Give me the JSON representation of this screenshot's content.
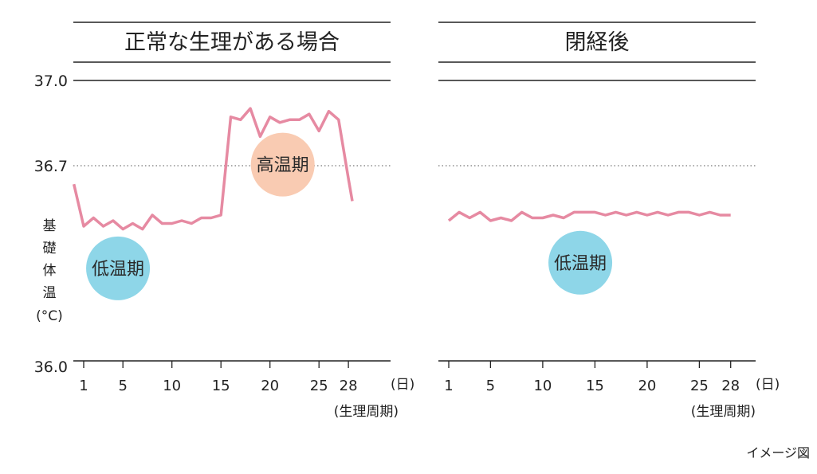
{
  "figure": {
    "y_axis_label_chars": [
      "基",
      "礎",
      "体",
      "温",
      "(°C)"
    ],
    "note": "イメージ図"
  },
  "chart_data": [
    {
      "type": "line",
      "title": "正常な生理がある場合",
      "ylim": [
        36.0,
        37.0
      ],
      "y_ticks": [
        "36.0",
        "36.7",
        "37.0"
      ],
      "reference_line": 36.7,
      "x_ticks": [
        "1",
        "5",
        "10",
        "15",
        "20",
        "25",
        "28"
      ],
      "x_unit": "(日)",
      "x_caption": "(生理周期)",
      "series": [
        {
          "x": [
            0,
            1,
            2,
            3,
            4,
            5,
            6,
            7,
            8,
            9,
            10,
            11,
            12,
            13,
            14,
            15,
            16,
            17,
            18,
            19,
            20,
            21,
            22,
            23,
            24,
            25,
            26,
            27,
            28,
            28.4
          ],
          "y": [
            36.63,
            36.48,
            36.51,
            36.48,
            36.5,
            36.47,
            36.49,
            36.47,
            36.52,
            36.49,
            36.49,
            36.5,
            36.49,
            36.51,
            36.51,
            36.52,
            36.87,
            36.86,
            36.9,
            36.8,
            36.87,
            36.85,
            36.86,
            36.86,
            36.88,
            36.82,
            36.89,
            36.86,
            36.65,
            36.57
          ],
          "color": "#e68aa2"
        }
      ],
      "annotations": [
        {
          "label": "高温期",
          "color": "#f9cbb2",
          "x": 21.3,
          "y": 36.7
        },
        {
          "label": "低温期",
          "color": "#8ed6e8",
          "x": 4.5,
          "y": 36.33
        }
      ]
    },
    {
      "type": "line",
      "title": "閉経後",
      "ylim": [
        36.0,
        37.0
      ],
      "reference_line": 36.7,
      "x_ticks": [
        "1",
        "5",
        "10",
        "15",
        "20",
        "25",
        "28"
      ],
      "x_unit": "(日)",
      "x_caption": "(生理周期)",
      "series": [
        {
          "x": [
            1,
            2,
            3,
            4,
            5,
            6,
            7,
            8,
            9,
            10,
            11,
            12,
            13,
            14,
            15,
            16,
            17,
            18,
            19,
            20,
            21,
            22,
            23,
            24,
            25,
            26,
            27,
            28
          ],
          "y": [
            36.5,
            36.53,
            36.51,
            36.53,
            36.5,
            36.51,
            36.5,
            36.53,
            36.51,
            36.51,
            36.52,
            36.51,
            36.53,
            36.53,
            36.53,
            36.52,
            36.53,
            36.52,
            36.53,
            36.52,
            36.53,
            36.52,
            36.53,
            36.53,
            36.52,
            36.53,
            36.52,
            36.52
          ],
          "color": "#e68aa2"
        }
      ],
      "annotations": [
        {
          "label": "低温期",
          "color": "#8ed6e8",
          "x": 13.6,
          "y": 36.35
        }
      ]
    }
  ]
}
